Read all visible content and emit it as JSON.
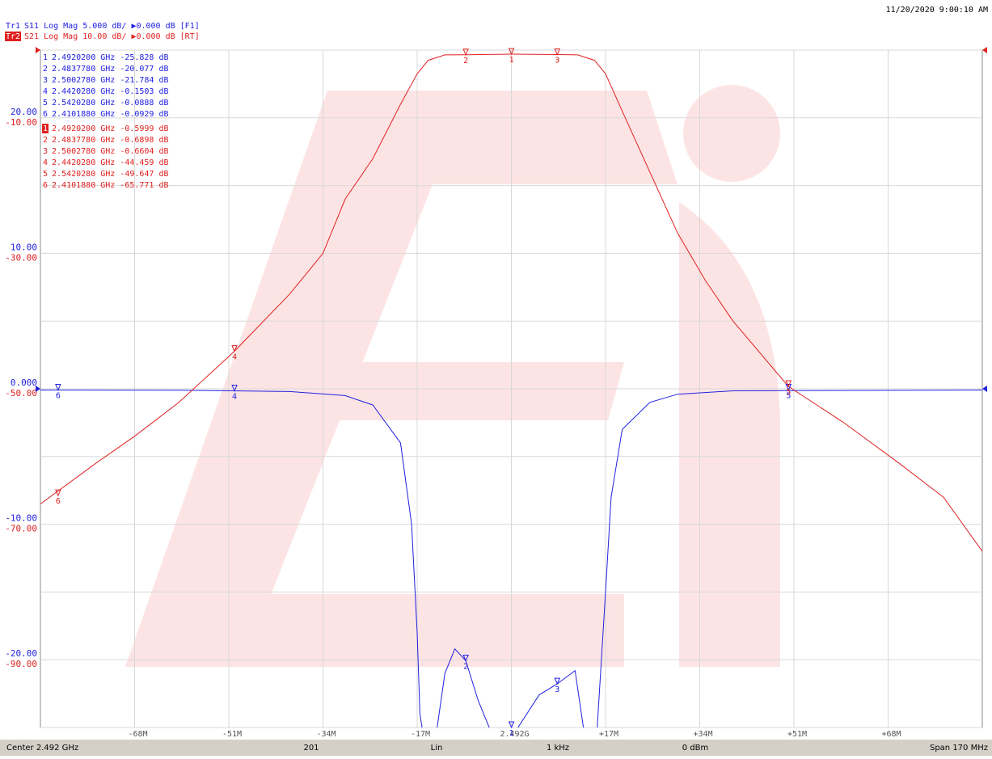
{
  "chart_data": {
    "type": "line",
    "timestamp": "11/20/2020 9:00:10 AM",
    "xlim": [
      -85,
      85
    ],
    "xticks": [
      {
        "value": -68,
        "label": "-68M"
      },
      {
        "value": -51,
        "label": "-51M"
      },
      {
        "value": -34,
        "label": "-34M"
      },
      {
        "value": -17,
        "label": "-17M"
      },
      {
        "value": 0,
        "label": "2.492G"
      },
      {
        "value": 17,
        "label": "+17M"
      },
      {
        "value": 34,
        "label": "+34M"
      },
      {
        "value": 51,
        "label": "+51M"
      },
      {
        "value": 68,
        "label": "+68M"
      }
    ],
    "ylim": [
      -25,
      25
    ],
    "yticks": [
      {
        "value": 20,
        "label": "20.00"
      },
      {
        "value": 10,
        "label": "10.00"
      },
      {
        "value": 0,
        "label": "0.000"
      },
      {
        "value": -10,
        "label": "-10.00"
      },
      {
        "value": -20,
        "label": "-20.00"
      }
    ],
    "y2lim": [
      -100,
      0
    ],
    "y2ticks": [
      {
        "value": -10,
        "label": "-10.00"
      },
      {
        "value": -30,
        "label": "-30.00"
      },
      {
        "value": -50,
        "label": "-50.00"
      },
      {
        "value": -70,
        "label": "-70.00"
      },
      {
        "value": -90,
        "label": "-90.00"
      }
    ],
    "grid": true,
    "series": [
      {
        "name": "Tr1",
        "desc": "S11 Log Mag 5.000 dB/ ▶0.000 dB [F1]",
        "color": "#2020e0",
        "ref_level": 0,
        "x": [
          -85,
          -60,
          -40,
          -30,
          -25,
          -20,
          -18,
          -17,
          -16.5,
          -15,
          -13.4,
          -12,
          -10.2,
          -8.222,
          -6,
          -4,
          0,
          1.2,
          5,
          8.278,
          11.5,
          13,
          14.5,
          15.5,
          17,
          18,
          20,
          25,
          30,
          40,
          85
        ],
        "values": [
          -0.09,
          -0.1,
          -0.2,
          -0.5,
          -1.2,
          -4,
          -10,
          -18,
          -24,
          -28,
          -25,
          -21,
          -19.2,
          -20.077,
          -23,
          -25,
          -27,
          -25,
          -22.6,
          -21.784,
          -20.8,
          -25,
          -28,
          -25,
          -15,
          -8,
          -3,
          -1,
          -0.4,
          -0.15,
          -0.09
        ],
        "markers": {
          "ids": [
            "1",
            "2",
            "3",
            "4",
            "5",
            "6"
          ],
          "freqs": [
            "2.4920200 GHz",
            "2.4837780 GHz",
            "2.5002780 GHz",
            "2.4420280 GHz",
            "2.5420280 GHz",
            "2.4101880 GHz"
          ],
          "x": [
            0.02,
            -8.222,
            8.278,
            -49.972,
            50.028,
            -81.812
          ],
          "values": [
            -25.828,
            -20.077,
            -21.784,
            -0.1503,
            -0.0888,
            -0.0929
          ],
          "value_labels": [
            "-25.828 dB",
            "-20.077 dB",
            "-21.784 dB",
            "-0.1503 dB",
            "-0.0888 dB",
            "-0.0929 dB"
          ]
        }
      },
      {
        "name": "Tr2",
        "desc": "S21 Log Mag 10.00 dB/ ▶0.000 dB [RT]",
        "color": "#e02020",
        "axis": "y2",
        "ref_level": 0,
        "x": [
          -85,
          -75,
          -68,
          -60,
          -50,
          -40,
          -34,
          -30,
          -25,
          -20,
          -17,
          -15,
          -12,
          -8.222,
          0.02,
          8.278,
          12,
          15,
          17,
          20,
          25,
          30,
          35,
          40,
          50,
          60,
          70,
          78,
          85
        ],
        "values": [
          -67,
          -61,
          -57,
          -52,
          -44.459,
          -36,
          -30,
          -22,
          -16,
          -8,
          -3.5,
          -1.5,
          -0.7,
          -0.6898,
          -0.5999,
          -0.6604,
          -0.7,
          -1.5,
          -3.5,
          -9,
          -18,
          -27,
          -34,
          -40,
          -49.647,
          -55,
          -61,
          -66,
          -74
        ],
        "markers": {
          "ids": [
            "1",
            "2",
            "3",
            "4",
            "5",
            "6"
          ],
          "freqs": [
            "2.4920200 GHz",
            "2.4837780 GHz",
            "2.5002780 GHz",
            "2.4420280 GHz",
            "2.5420280 GHz",
            "2.4101880 GHz"
          ],
          "x": [
            0.02,
            -8.222,
            8.278,
            -49.972,
            50.028,
            -81.812
          ],
          "values": [
            -0.5999,
            -0.6898,
            -0.6604,
            -44.459,
            -49.647,
            -65.771
          ],
          "value_labels": [
            "-0.5999 dB",
            "-0.6898 dB",
            "-0.6604 dB",
            "-44.459 dB",
            "-49.647 dB",
            "-65.771 dB"
          ]
        }
      }
    ],
    "footer": [
      "Center 2.492 GHz",
      "201",
      "Lin",
      "1 kHz",
      "0 dBm",
      "Span 170 MHz"
    ]
  }
}
